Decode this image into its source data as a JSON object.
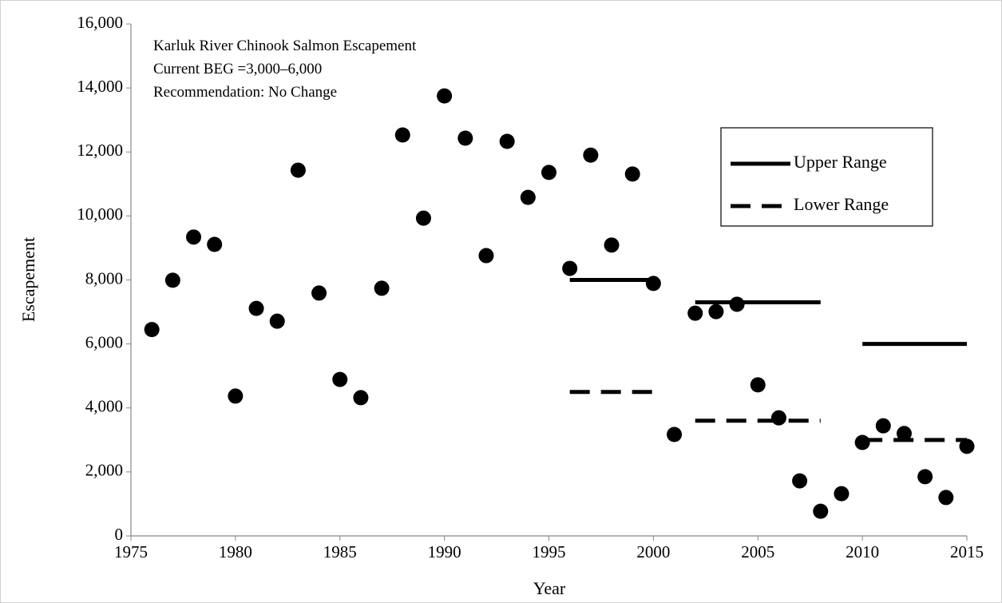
{
  "chart_data": {
    "type": "scatter",
    "annotations": [
      "Karluk River Chinook Salmon Escapement",
      "Current BEG =3,000–6,000",
      "Recommendation: No Change"
    ],
    "xlabel": "Year",
    "ylabel": "Escapement",
    "xlim": [
      1975,
      2015
    ],
    "xticks": [
      1975,
      1980,
      1985,
      1990,
      1995,
      2000,
      2005,
      2010,
      2015
    ],
    "ylim": [
      0,
      16000
    ],
    "yticks": [
      0,
      {
        "value": 2000,
        "label": "2,000"
      },
      {
        "value": 4000,
        "label": "4,000"
      },
      {
        "value": 6000,
        "label": "6,000"
      },
      {
        "value": 8000,
        "label": "8,000"
      },
      {
        "value": 10000,
        "label": "10,000"
      },
      {
        "value": 12000,
        "label": "12,000"
      },
      {
        "value": 14000,
        "label": "14,000"
      },
      {
        "value": 16000,
        "label": "16,000"
      }
    ],
    "points": {
      "color": "#000000",
      "x": [
        1976,
        1977,
        1978,
        1979,
        1980,
        1981,
        1982,
        1983,
        1984,
        1985,
        1986,
        1987,
        1988,
        1989,
        1990,
        1991,
        1992,
        1993,
        1994,
        1995,
        1996,
        1997,
        1998,
        1999,
        2000,
        2001,
        2002,
        2003,
        2004,
        2005,
        2006,
        2007,
        2008,
        2009,
        2010,
        2011,
        2012,
        2013,
        2014,
        2015
      ],
      "values": [
        6450,
        7990,
        9340,
        9110,
        4370,
        7110,
        6710,
        11430,
        7590,
        4890,
        4320,
        7740,
        12530,
        9930,
        13750,
        12430,
        8760,
        12330,
        10580,
        11360,
        8360,
        11900,
        9090,
        11310,
        7890,
        3170,
        6960,
        7010,
        7240,
        4720,
        3690,
        1720,
        770,
        1320,
        2920,
        3440,
        3200,
        1850,
        1200,
        2800
      ]
    },
    "series": [
      {
        "name": "Upper Range",
        "color": "#000000",
        "dash": false,
        "segments": [
          {
            "x": [
              1996,
              2000
            ],
            "values": [
              8000,
              8000
            ]
          },
          {
            "x": [
              2002,
              2008
            ],
            "values": [
              7300,
              7300
            ]
          },
          {
            "x": [
              2010,
              2015
            ],
            "values": [
              6000,
              6000
            ]
          }
        ]
      },
      {
        "name": "Lower Range",
        "color": "#000000",
        "dash": true,
        "segments": [
          {
            "x": [
              1996,
              2000
            ],
            "values": [
              4500,
              4500
            ]
          },
          {
            "x": [
              2002,
              2008
            ],
            "values": [
              3600,
              3600
            ]
          },
          {
            "x": [
              2010,
              2015
            ],
            "values": [
              3000,
              3000
            ]
          }
        ]
      }
    ],
    "legend": "upper-right"
  }
}
